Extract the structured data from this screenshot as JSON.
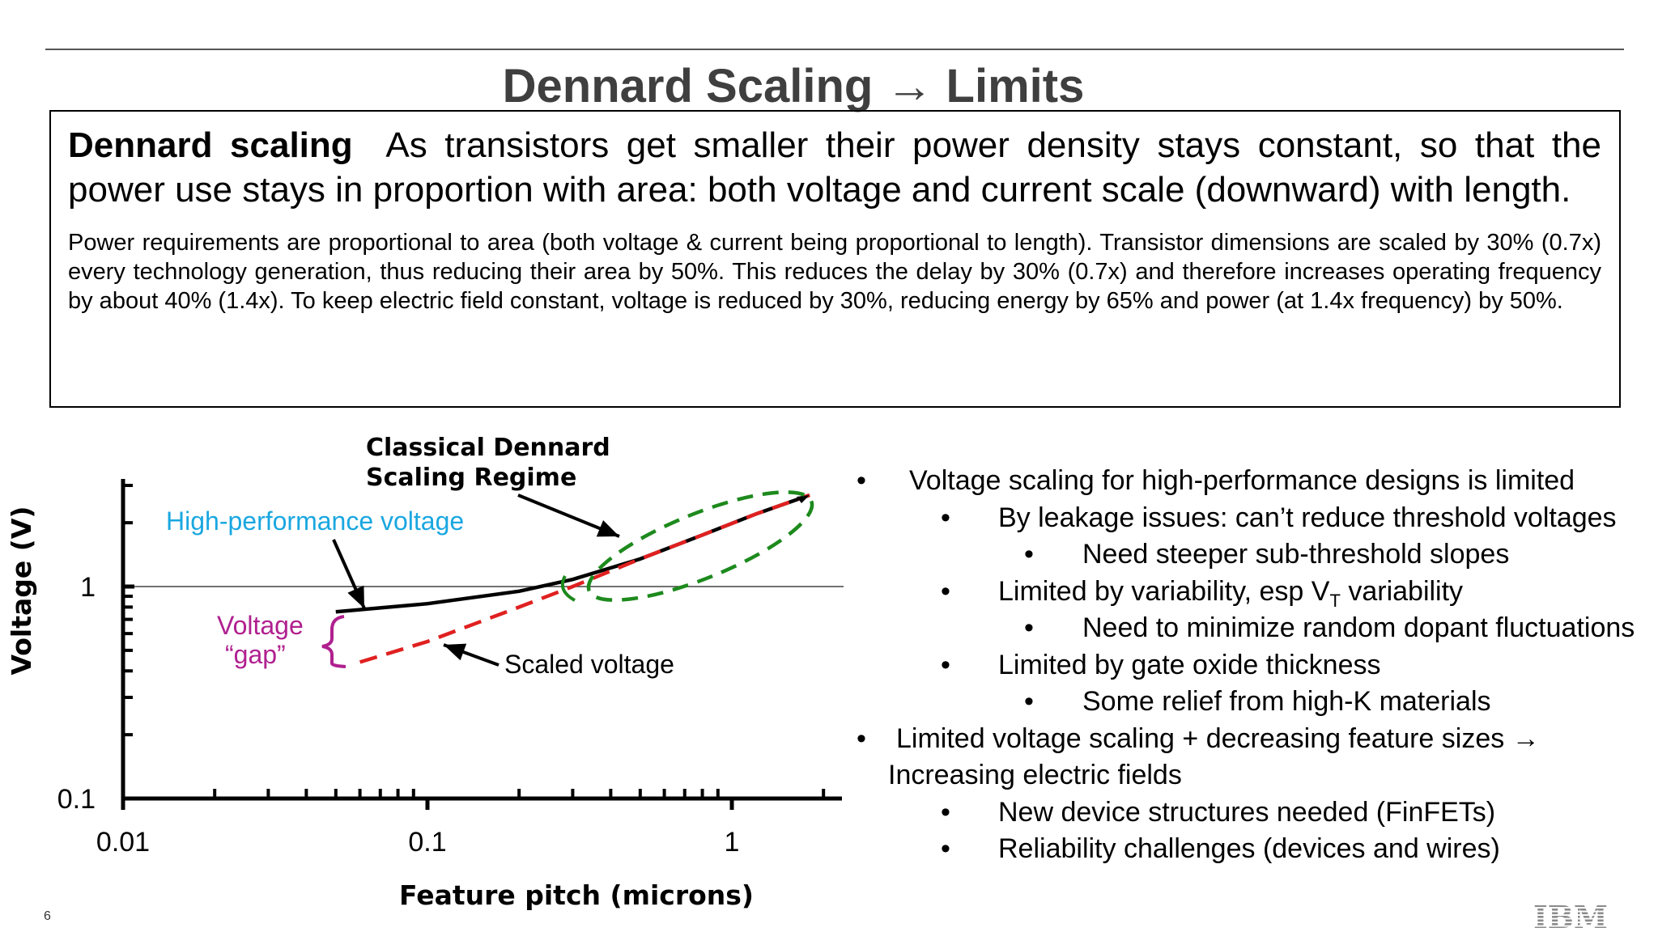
{
  "slide": {
    "title": "Dennard Scaling → Limits",
    "page_number": "6",
    "logo_text": "IBM"
  },
  "definition": {
    "term": "Dennard scaling",
    "text": "As transistors get smaller their power density stays constant, so that the power use stays in proportion with area: both voltage and current scale (downward) with length.",
    "detail": "Power requirements are proportional to area (both voltage & current being proportional to length). Transistor dimensions are scaled by 30% (0.7x) every technology generation, thus reducing their area by 50%. This reduces the delay by 30% (0.7x) and therefore increases operating frequency by about 40% (1.4x). To keep electric field constant, voltage is reduced by 30%, reducing energy by 65% and power (at 1.4x frequency) by 50%."
  },
  "bullets": [
    {
      "level": 1,
      "text": "Voltage scaling for high-performance designs is limited"
    },
    {
      "level": 2,
      "text": "By leakage issues: can’t reduce threshold voltages"
    },
    {
      "level": 3,
      "text": "Need steeper sub-threshold slopes"
    },
    {
      "level": 2,
      "text": "Limited by variability, esp V",
      "sub": "T",
      "after": " variability"
    },
    {
      "level": 3,
      "text": "Need to minimize random dopant fluctuations"
    },
    {
      "level": 2,
      "text": "Limited by gate oxide thickness"
    },
    {
      "level": 3,
      "text": "Some relief from high-K materials"
    },
    {
      "level": 1,
      "text": "Limited voltage scaling + decreasing feature sizes →",
      "cont": "Increasing electric fields"
    },
    {
      "level": 2,
      "text": "New device structures needed (FinFETs)"
    },
    {
      "level": 2,
      "text": "Reliability challenges (devices and wires)"
    }
  ],
  "chart_data": {
    "type": "line",
    "xlabel": "Feature pitch (microns)",
    "ylabel": "Voltage (V)",
    "xscale": "log",
    "yscale": "log",
    "xlim": [
      0.01,
      2.0
    ],
    "ylim": [
      0.1,
      3.0
    ],
    "xticks": [
      "0.01",
      "0.1",
      "1"
    ],
    "yticks": [
      "0.1",
      "1"
    ],
    "reference_line_y": 1,
    "series": [
      {
        "name": "High-performance voltage",
        "color": "#000000",
        "style": "solid",
        "x": [
          0.05,
          0.1,
          0.2,
          0.3,
          0.5,
          0.8,
          1.2,
          1.8
        ],
        "y": [
          0.76,
          0.83,
          0.95,
          1.08,
          1.35,
          1.75,
          2.2,
          2.7
        ]
      },
      {
        "name": "Scaled voltage",
        "color": "#e02020",
        "style": "dashed",
        "x": [
          0.06,
          0.1,
          0.2,
          0.3,
          0.5,
          0.8,
          1.2,
          1.8
        ],
        "y": [
          0.44,
          0.55,
          0.8,
          1.0,
          1.35,
          1.75,
          2.2,
          2.7
        ]
      }
    ],
    "annotations": [
      {
        "text": "Classical Dennard",
        "color": "#000000"
      },
      {
        "text": "Scaling Regime",
        "color": "#000000"
      },
      {
        "text": "High-performance voltage",
        "color": "#1aa7e0"
      },
      {
        "text": "Voltage",
        "color": "#b0208f"
      },
      {
        "text": "“gap”",
        "color": "#b0208f"
      },
      {
        "text": "Scaled voltage",
        "color": "#000000"
      }
    ],
    "colors": {
      "regime_ellipse": "#1d8a1d",
      "gap_brace": "#b0208f"
    }
  }
}
